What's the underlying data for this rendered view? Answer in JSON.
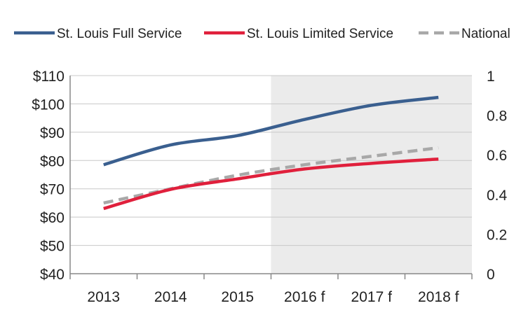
{
  "chart_data": {
    "type": "line",
    "categories": [
      "2013",
      "2014",
      "2015",
      "2016 f",
      "2017 f",
      "2018 f"
    ],
    "forecast_start": "2016 f",
    "y_left": {
      "ticks": [
        40,
        50,
        60,
        70,
        80,
        90,
        100,
        110
      ],
      "tick_labels": [
        "$40",
        "$50",
        "$60",
        "$70",
        "$80",
        "$90",
        "$100",
        "$110"
      ],
      "ylim": [
        40,
        110
      ]
    },
    "y_right": {
      "ticks": [
        0,
        0.2,
        0.4,
        0.6,
        0.8,
        1
      ],
      "tick_labels": [
        "0",
        "0.2",
        "0.4",
        "0.6",
        "0.8",
        "1"
      ],
      "ylim": [
        0,
        1
      ]
    },
    "grid": true,
    "legend_position": "top",
    "series": [
      {
        "name": "St. Louis Full Service",
        "color": "#3a5f8f",
        "dash": "solid",
        "values": [
          78.5,
          85.5,
          88.8,
          94.5,
          99.5,
          102.3
        ]
      },
      {
        "name": "St. Louis Limited Service",
        "color": "#e0203c",
        "dash": "solid",
        "values": [
          63.0,
          69.8,
          73.5,
          77.0,
          79.0,
          80.5
        ]
      },
      {
        "name": "National",
        "color": "#a8a8a8",
        "dash": "dashed",
        "values": [
          65.0,
          70.0,
          74.8,
          78.5,
          81.5,
          84.5
        ]
      }
    ]
  }
}
